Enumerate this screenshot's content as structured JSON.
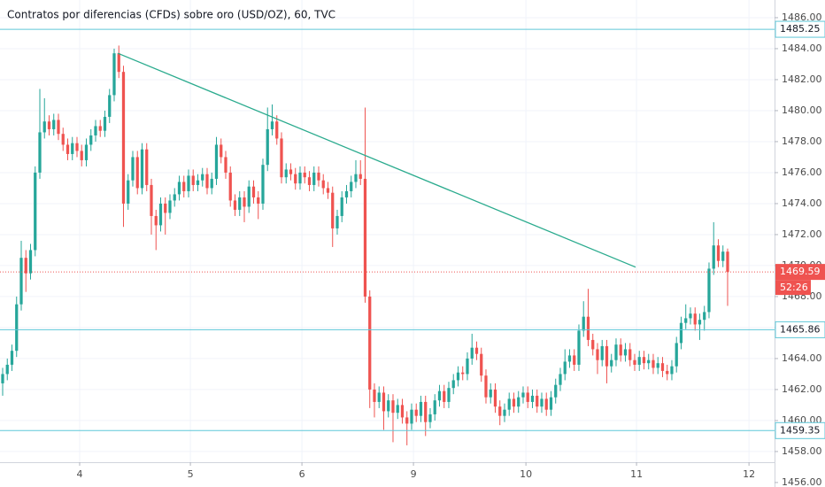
{
  "chart_data": {
    "type": "candlestick",
    "title": "Contratos por diferencias (CFDs) sobre oro (USD/OZ), 60, TVC",
    "up_color": "#26a69a",
    "down_color": "#ef5350",
    "xlim": [
      -0.57,
      166.1
    ],
    "ylim": [
      1455.71,
      1487.14
    ],
    "grid": true,
    "xticks": [
      {
        "value": 16.57,
        "label": "4"
      },
      {
        "value": 40.4,
        "label": "5"
      },
      {
        "value": 64.4,
        "label": "6"
      },
      {
        "value": 88.4,
        "label": "9"
      },
      {
        "value": 112.6,
        "label": "10"
      },
      {
        "value": 136.4,
        "label": "11"
      },
      {
        "value": 160.6,
        "label": "12"
      }
    ],
    "yticks": [
      {
        "value": 1456,
        "label": "1456.00"
      },
      {
        "value": 1458,
        "label": "1458.00"
      },
      {
        "value": 1460,
        "label": "1460.00"
      },
      {
        "value": 1462,
        "label": "1462.00"
      },
      {
        "value": 1464,
        "label": "1464.00"
      },
      {
        "value": 1466,
        "label": "1466.00"
      },
      {
        "value": 1468,
        "label": "1468.00"
      },
      {
        "value": 1470,
        "label": "1470.00"
      },
      {
        "value": 1472,
        "label": "1472.00"
      },
      {
        "value": 1474,
        "label": "1474.00"
      },
      {
        "value": 1476,
        "label": "1476.00"
      },
      {
        "value": 1478,
        "label": "1478.00"
      },
      {
        "value": 1480,
        "label": "1480.00"
      },
      {
        "value": 1482,
        "label": "1482.00"
      },
      {
        "value": 1484,
        "label": "1484.00"
      },
      {
        "value": 1486,
        "label": "1486.00"
      }
    ],
    "hlines": [
      1485.25,
      1465.86,
      1459.35
    ],
    "hline_color": "#5fc7d8",
    "last_price": 1469.59,
    "countdown": "52:26",
    "trendline": {
      "x": [
        24.8,
        136.2
      ],
      "y": [
        1483.7,
        1469.9
      ],
      "color": "#2bab8e"
    },
    "x": [
      0,
      1,
      2,
      3,
      4,
      5,
      6,
      7,
      8,
      9,
      10,
      11,
      12,
      13,
      14,
      15,
      16,
      17,
      18,
      19,
      20,
      21,
      22,
      23,
      24,
      25,
      26,
      27,
      28,
      29,
      30,
      31,
      32,
      33,
      34,
      35,
      36,
      37,
      38,
      39,
      40,
      41,
      42,
      43,
      44,
      45,
      46,
      47,
      48,
      49,
      50,
      51,
      52,
      53,
      54,
      55,
      56,
      57,
      58,
      59,
      60,
      61,
      62,
      63,
      64,
      65,
      66,
      67,
      68,
      69,
      70,
      71,
      72,
      73,
      74,
      75,
      76,
      77,
      78,
      79,
      80,
      81,
      82,
      83,
      84,
      85,
      86,
      87,
      88,
      89,
      90,
      91,
      92,
      93,
      94,
      95,
      96,
      97,
      98,
      99,
      100,
      101,
      102,
      103,
      104,
      105,
      106,
      107,
      108,
      109,
      110,
      111,
      112,
      113,
      114,
      115,
      116,
      117,
      118,
      119,
      120,
      121,
      122,
      123,
      124,
      125,
      126,
      127,
      128,
      129,
      130,
      131,
      132,
      133,
      134,
      135,
      136,
      137,
      138,
      139,
      140,
      141,
      142,
      143,
      144,
      145,
      146,
      147,
      148,
      149,
      150,
      151,
      152,
      153,
      154,
      155,
      156
    ],
    "ohlc": [
      [
        1462.4,
        1463.4,
        1461.6,
        1463.0
      ],
      [
        1463.0,
        1464.0,
        1462.6,
        1463.6
      ],
      [
        1463.6,
        1464.9,
        1463.2,
        1464.5
      ],
      [
        1464.5,
        1468.0,
        1464.1,
        1467.5
      ],
      [
        1467.5,
        1471.6,
        1467.1,
        1470.5
      ],
      [
        1470.5,
        1471.0,
        1468.3,
        1469.5
      ],
      [
        1469.5,
        1471.4,
        1469.1,
        1471.0
      ],
      [
        1471.0,
        1476.4,
        1470.6,
        1476.0
      ],
      [
        1476.0,
        1481.4,
        1475.6,
        1478.6
      ],
      [
        1478.6,
        1480.8,
        1478.2,
        1479.3
      ],
      [
        1479.3,
        1479.7,
        1478.4,
        1478.8
      ],
      [
        1478.8,
        1479.8,
        1478.4,
        1479.4
      ],
      [
        1479.4,
        1479.8,
        1478.1,
        1478.5
      ],
      [
        1478.5,
        1478.9,
        1477.4,
        1477.8
      ],
      [
        1477.8,
        1478.2,
        1476.8,
        1477.2
      ],
      [
        1477.2,
        1478.3,
        1476.8,
        1477.9
      ],
      [
        1477.9,
        1478.3,
        1477.0,
        1477.4
      ],
      [
        1477.4,
        1477.8,
        1476.4,
        1476.8
      ],
      [
        1476.8,
        1478.2,
        1476.4,
        1477.8
      ],
      [
        1477.8,
        1478.8,
        1477.4,
        1478.4
      ],
      [
        1478.4,
        1479.4,
        1478.0,
        1479.0
      ],
      [
        1479.0,
        1479.4,
        1478.3,
        1478.7
      ],
      [
        1478.7,
        1480.0,
        1478.3,
        1479.6
      ],
      [
        1479.6,
        1481.4,
        1479.2,
        1481.0
      ],
      [
        1481.0,
        1484.0,
        1480.6,
        1483.7
      ],
      [
        1483.7,
        1484.2,
        1482.1,
        1482.5
      ],
      [
        1482.5,
        1482.9,
        1472.5,
        1474.0
      ],
      [
        1474.0,
        1475.9,
        1473.6,
        1475.5
      ],
      [
        1475.5,
        1477.4,
        1475.1,
        1477.0
      ],
      [
        1477.0,
        1477.4,
        1474.6,
        1475.0
      ],
      [
        1475.0,
        1477.9,
        1474.6,
        1477.5
      ],
      [
        1477.5,
        1477.9,
        1474.8,
        1475.2
      ],
      [
        1475.2,
        1475.6,
        1472.0,
        1473.2
      ],
      [
        1473.2,
        1473.6,
        1471.0,
        1472.6
      ],
      [
        1472.6,
        1474.4,
        1472.2,
        1474.0
      ],
      [
        1474.0,
        1474.4,
        1472.0,
        1473.4
      ],
      [
        1473.4,
        1474.6,
        1473.0,
        1474.2
      ],
      [
        1474.2,
        1475.0,
        1473.8,
        1474.6
      ],
      [
        1474.6,
        1475.8,
        1474.2,
        1475.4
      ],
      [
        1475.4,
        1475.8,
        1474.4,
        1474.8
      ],
      [
        1474.8,
        1476.2,
        1474.4,
        1475.8
      ],
      [
        1475.8,
        1476.2,
        1474.8,
        1475.2
      ],
      [
        1475.2,
        1475.9,
        1474.8,
        1475.5
      ],
      [
        1475.5,
        1476.3,
        1475.1,
        1475.9
      ],
      [
        1475.9,
        1476.3,
        1474.6,
        1475.0
      ],
      [
        1475.0,
        1476.0,
        1474.6,
        1475.6
      ],
      [
        1475.6,
        1478.3,
        1475.2,
        1477.8
      ],
      [
        1477.8,
        1478.2,
        1476.6,
        1477.0
      ],
      [
        1477.0,
        1477.4,
        1475.6,
        1476.0
      ],
      [
        1476.0,
        1476.4,
        1473.8,
        1474.2
      ],
      [
        1474.2,
        1474.6,
        1473.2,
        1473.6
      ],
      [
        1473.6,
        1474.8,
        1473.2,
        1474.4
      ],
      [
        1474.4,
        1474.8,
        1472.8,
        1473.8
      ],
      [
        1473.8,
        1475.5,
        1473.4,
        1475.1
      ],
      [
        1475.1,
        1475.5,
        1474.0,
        1474.4
      ],
      [
        1474.4,
        1474.8,
        1473.0,
        1474.0
      ],
      [
        1474.0,
        1476.9,
        1473.6,
        1476.5
      ],
      [
        1476.5,
        1480.2,
        1476.1,
        1478.8
      ],
      [
        1478.8,
        1480.4,
        1478.4,
        1479.3
      ],
      [
        1479.3,
        1479.7,
        1477.8,
        1478.2
      ],
      [
        1478.2,
        1478.6,
        1475.3,
        1475.7
      ],
      [
        1475.7,
        1476.6,
        1475.3,
        1476.2
      ],
      [
        1476.2,
        1476.6,
        1475.5,
        1475.9
      ],
      [
        1475.9,
        1476.3,
        1474.9,
        1475.3
      ],
      [
        1475.3,
        1476.4,
        1474.9,
        1476.0
      ],
      [
        1476.0,
        1476.4,
        1475.3,
        1475.7
      ],
      [
        1475.7,
        1476.1,
        1474.8,
        1475.2
      ],
      [
        1475.2,
        1476.4,
        1474.8,
        1476.0
      ],
      [
        1476.0,
        1476.4,
        1475.1,
        1475.5
      ],
      [
        1475.5,
        1475.9,
        1474.6,
        1475.0
      ],
      [
        1475.0,
        1475.4,
        1474.3,
        1474.7
      ],
      [
        1474.7,
        1475.1,
        1471.2,
        1472.4
      ],
      [
        1472.4,
        1473.6,
        1472.0,
        1473.2
      ],
      [
        1473.2,
        1474.8,
        1472.8,
        1474.4
      ],
      [
        1474.4,
        1475.2,
        1474.0,
        1474.8
      ],
      [
        1474.8,
        1475.8,
        1474.4,
        1475.4
      ],
      [
        1475.4,
        1476.8,
        1475.0,
        1475.9
      ],
      [
        1475.9,
        1476.8,
        1475.2,
        1475.6
      ],
      [
        1475.6,
        1480.2,
        1467.6,
        1468.0
      ],
      [
        1468.0,
        1468.4,
        1460.8,
        1462.0
      ],
      [
        1462.0,
        1462.4,
        1460.2,
        1461.2
      ],
      [
        1461.2,
        1462.2,
        1460.8,
        1461.8
      ],
      [
        1461.8,
        1462.2,
        1459.4,
        1460.6
      ],
      [
        1460.6,
        1461.7,
        1460.2,
        1461.3
      ],
      [
        1461.3,
        1461.7,
        1458.6,
        1460.5
      ],
      [
        1460.5,
        1461.4,
        1460.1,
        1461.0
      ],
      [
        1461.0,
        1461.4,
        1459.8,
        1460.2
      ],
      [
        1460.2,
        1460.6,
        1458.4,
        1459.8
      ],
      [
        1459.8,
        1461.1,
        1459.4,
        1460.7
      ],
      [
        1460.7,
        1461.1,
        1459.9,
        1460.3
      ],
      [
        1460.3,
        1461.6,
        1459.9,
        1461.2
      ],
      [
        1461.2,
        1461.6,
        1459.0,
        1459.9
      ],
      [
        1459.9,
        1460.8,
        1459.5,
        1460.4
      ],
      [
        1460.4,
        1461.7,
        1460.0,
        1461.3
      ],
      [
        1461.3,
        1462.3,
        1460.9,
        1461.9
      ],
      [
        1461.9,
        1462.3,
        1460.8,
        1461.2
      ],
      [
        1461.2,
        1462.5,
        1460.8,
        1462.1
      ],
      [
        1462.1,
        1463.0,
        1461.7,
        1462.6
      ],
      [
        1462.6,
        1463.5,
        1462.2,
        1463.1
      ],
      [
        1463.1,
        1463.5,
        1462.6,
        1463.0
      ],
      [
        1463.0,
        1464.4,
        1462.6,
        1464.0
      ],
      [
        1464.0,
        1465.6,
        1463.6,
        1464.7
      ],
      [
        1464.7,
        1465.1,
        1463.9,
        1464.3
      ],
      [
        1464.3,
        1464.7,
        1462.5,
        1462.9
      ],
      [
        1462.9,
        1463.3,
        1461.1,
        1461.5
      ],
      [
        1461.5,
        1462.4,
        1461.1,
        1462.0
      ],
      [
        1462.0,
        1462.4,
        1460.5,
        1460.9
      ],
      [
        1460.9,
        1461.3,
        1459.7,
        1460.3
      ],
      [
        1460.3,
        1461.1,
        1459.9,
        1460.7
      ],
      [
        1460.7,
        1461.8,
        1460.3,
        1461.4
      ],
      [
        1461.4,
        1461.8,
        1460.5,
        1460.9
      ],
      [
        1460.9,
        1461.9,
        1460.5,
        1461.5
      ],
      [
        1461.5,
        1462.2,
        1461.1,
        1461.8
      ],
      [
        1461.8,
        1462.2,
        1460.8,
        1461.2
      ],
      [
        1461.2,
        1462.0,
        1460.8,
        1461.6
      ],
      [
        1461.6,
        1462.0,
        1460.5,
        1460.9
      ],
      [
        1460.9,
        1461.8,
        1460.5,
        1461.4
      ],
      [
        1461.4,
        1461.8,
        1460.3,
        1460.7
      ],
      [
        1460.7,
        1461.9,
        1460.3,
        1461.5
      ],
      [
        1461.5,
        1462.7,
        1461.1,
        1462.3
      ],
      [
        1462.3,
        1463.4,
        1461.9,
        1463.0
      ],
      [
        1463.0,
        1464.6,
        1462.6,
        1463.8
      ],
      [
        1463.8,
        1464.6,
        1463.4,
        1464.2
      ],
      [
        1464.2,
        1464.6,
        1463.2,
        1463.6
      ],
      [
        1463.6,
        1466.2,
        1463.2,
        1465.8
      ],
      [
        1465.8,
        1467.7,
        1465.4,
        1466.7
      ],
      [
        1466.7,
        1468.5,
        1464.8,
        1465.2
      ],
      [
        1465.2,
        1465.6,
        1464.2,
        1464.6
      ],
      [
        1464.6,
        1465.0,
        1463.0,
        1463.9
      ],
      [
        1463.9,
        1465.2,
        1463.5,
        1464.8
      ],
      [
        1464.8,
        1465.2,
        1462.4,
        1463.5
      ],
      [
        1463.5,
        1464.3,
        1463.1,
        1463.9
      ],
      [
        1463.9,
        1465.3,
        1463.5,
        1464.9
      ],
      [
        1464.9,
        1465.3,
        1463.8,
        1464.2
      ],
      [
        1464.2,
        1465.0,
        1463.8,
        1464.6
      ],
      [
        1464.6,
        1465.0,
        1463.5,
        1463.9
      ],
      [
        1463.9,
        1464.3,
        1463.2,
        1463.6
      ],
      [
        1463.6,
        1464.5,
        1463.2,
        1464.1
      ],
      [
        1464.1,
        1464.5,
        1463.3,
        1463.7
      ],
      [
        1463.7,
        1464.3,
        1463.3,
        1463.9
      ],
      [
        1463.9,
        1464.3,
        1463.0,
        1463.4
      ],
      [
        1463.4,
        1464.1,
        1463.0,
        1463.7
      ],
      [
        1463.7,
        1464.1,
        1462.8,
        1463.2
      ],
      [
        1463.2,
        1463.6,
        1462.6,
        1463.0
      ],
      [
        1463.0,
        1463.9,
        1462.6,
        1463.5
      ],
      [
        1463.5,
        1465.4,
        1463.1,
        1465.0
      ],
      [
        1465.0,
        1466.7,
        1464.6,
        1466.3
      ],
      [
        1466.3,
        1467.5,
        1465.9,
        1466.6
      ],
      [
        1466.6,
        1467.3,
        1466.2,
        1466.9
      ],
      [
        1466.9,
        1467.3,
        1465.8,
        1466.2
      ],
      [
        1466.2,
        1466.9,
        1465.2,
        1466.5
      ],
      [
        1466.5,
        1467.4,
        1465.8,
        1467.0
      ],
      [
        1467.0,
        1470.2,
        1466.6,
        1469.8
      ],
      [
        1469.8,
        1472.8,
        1469.4,
        1471.3
      ],
      [
        1471.3,
        1471.7,
        1469.9,
        1470.3
      ],
      [
        1470.3,
        1471.3,
        1469.9,
        1470.9
      ],
      [
        1470.9,
        1471.1,
        1467.4,
        1469.59
      ]
    ]
  }
}
